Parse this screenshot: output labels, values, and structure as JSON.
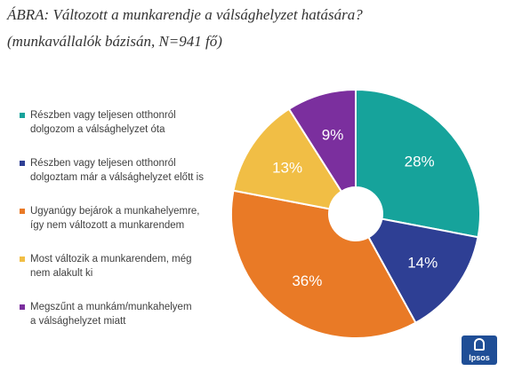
{
  "header": {
    "title": "ÁBRA: Változott a munkarendje a válsághelyzet hatására?",
    "subtitle": "(munkavállalók bázisán, N=941 fő)"
  },
  "chart_data": {
    "type": "pie",
    "donut": true,
    "title": "ÁBRA: Változott a munkarendje a válsághelyzet hatására?",
    "subtitle": "(munkavállalók bázisán, N=941 fő)",
    "legend_position": "left",
    "slices": [
      {
        "lines": [
          "Részben vagy teljesen otthonról",
          "dolgozom a válsághelyzet óta"
        ],
        "value": 28,
        "label": "28%",
        "color": "#16a39b"
      },
      {
        "lines": [
          "Részben vagy teljesen otthonról",
          "dolgoztam már a válsághelyzet előtt is"
        ],
        "value": 14,
        "label": "14%",
        "color": "#2e3f94"
      },
      {
        "lines": [
          "Ugyanúgy bejárok a munkahelyemre,",
          "így nem változott a munkarendem"
        ],
        "value": 36,
        "label": "36%",
        "color": "#e97a26"
      },
      {
        "lines": [
          "Most változik a munkarendem, még",
          "nem alakult ki"
        ],
        "value": 13,
        "label": "13%",
        "color": "#f1be45"
      },
      {
        "lines": [
          "Megszűnt a munkám/munkahelyem",
          "a válsághelyzet miatt"
        ],
        "value": 9,
        "label": "9%",
        "color": "#7b2f9e"
      }
    ]
  },
  "logo": {
    "text": "Ipsos"
  }
}
